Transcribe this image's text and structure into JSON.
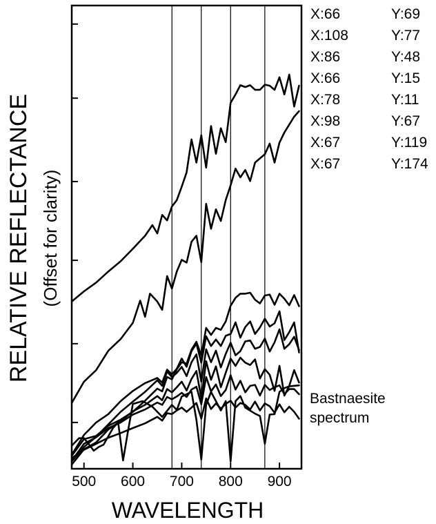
{
  "chart_data": {
    "type": "line",
    "title": "",
    "xlabel": "WAVELENGTH",
    "ylabel": "RELATIVE REFLECTANCE",
    "ylabel_sub": "(Offset for clarity)",
    "xlim": [
      475,
      945
    ],
    "xticks": [
      500,
      600,
      700,
      800,
      900
    ],
    "y_units": "relative (offset)",
    "ylim": [
      0,
      100
    ],
    "vertical_lines": [
      680,
      740,
      800,
      870
    ],
    "grid": false,
    "legend": "right",
    "series": [
      {
        "name": "X:66 Y:69",
        "x": [
          475,
          500,
          525,
          550,
          575,
          600,
          625,
          640,
          650,
          660,
          670,
          680,
          690,
          700,
          710,
          720,
          730,
          740,
          750,
          760,
          770,
          780,
          790,
          800,
          810,
          820,
          830,
          840,
          850,
          860,
          870,
          880,
          890,
          900,
          910,
          920,
          930,
          940
        ],
        "y": [
          36.1,
          38.3,
          40.2,
          42.6,
          44.8,
          47.5,
          50.3,
          52.6,
          50.8,
          54.8,
          53.6,
          56.6,
          58.0,
          60.9,
          64.0,
          71.1,
          66.1,
          72.0,
          65.0,
          74.0,
          68.0,
          73.5,
          70.5,
          79.0,
          80.8,
          82.8,
          82.4,
          82.8,
          81.8,
          81.8,
          82.9,
          82.7,
          81.8,
          84.5,
          80.8,
          85.1,
          78.2,
          82.7
        ]
      },
      {
        "name": "X:108 Y:77",
        "x": [
          475,
          500,
          525,
          550,
          575,
          600,
          615,
          625,
          635,
          650,
          660,
          670,
          680,
          690,
          700,
          710,
          720,
          730,
          740,
          750,
          760,
          770,
          780,
          790,
          800,
          810,
          820,
          830,
          840,
          850,
          860,
          870,
          880,
          890,
          900,
          910,
          920,
          930,
          940
        ],
        "y": [
          14.2,
          18.8,
          21.3,
          25.5,
          28.0,
          31.5,
          36.3,
          32.8,
          37.8,
          36.1,
          34.3,
          41.6,
          38.9,
          42.6,
          45.1,
          44.5,
          49.0,
          50.3,
          44.6,
          57.2,
          51.8,
          56.0,
          53.5,
          58.0,
          61.2,
          64.8,
          62.9,
          64.5,
          62.1,
          66.1,
          67.0,
          67.9,
          70.2,
          66.1,
          70.4,
          72.6,
          74.3,
          76.0,
          77.2
        ]
      },
      {
        "name": "X:86 Y:48",
        "x": [
          475,
          500,
          525,
          550,
          575,
          600,
          625,
          650,
          660,
          670,
          680,
          690,
          700,
          710,
          720,
          730,
          740,
          750,
          760,
          770,
          780,
          790,
          800,
          810,
          820,
          830,
          840,
          850,
          860,
          870,
          880,
          890,
          900,
          910,
          920,
          930,
          940
        ],
        "y": [
          2.8,
          6.4,
          7.1,
          9.3,
          10.6,
          12.3,
          14.7,
          17.3,
          16.7,
          19.8,
          19.3,
          21.5,
          23.0,
          22.7,
          25.7,
          27.4,
          24.5,
          30.4,
          28.9,
          30.4,
          30.0,
          31.8,
          35.2,
          36.9,
          37.8,
          37.8,
          38.0,
          36.5,
          35.7,
          37.4,
          37.6,
          35.4,
          37.8,
          36.7,
          35.3,
          37.5,
          35.1
        ]
      },
      {
        "name": "X:66 Y:15",
        "x": [
          475,
          500,
          525,
          550,
          575,
          600,
          625,
          650,
          660,
          670,
          680,
          690,
          700,
          710,
          720,
          730,
          740,
          750,
          760,
          770,
          780,
          790,
          800,
          810,
          820,
          830,
          840,
          850,
          860,
          870,
          880,
          890,
          900,
          910,
          920,
          930,
          940
        ],
        "y": [
          3.0,
          7.3,
          10.0,
          11.8,
          14.6,
          16.8,
          18.5,
          19.6,
          18.6,
          21.4,
          20.4,
          21.6,
          23.8,
          22.0,
          25.4,
          27.0,
          22.9,
          28.6,
          26.5,
          27.9,
          26.5,
          28.7,
          29.1,
          31.6,
          28.3,
          30.6,
          31.8,
          29.1,
          30.5,
          32.4,
          30.7,
          31.4,
          34.0,
          27.8,
          29.5,
          31.6,
          25.1
        ]
      },
      {
        "name": "X:78 Y:11",
        "x": [
          475,
          500,
          525,
          550,
          575,
          600,
          625,
          650,
          660,
          670,
          680,
          690,
          700,
          710,
          720,
          730,
          740,
          750,
          760,
          770,
          780,
          790,
          800,
          810,
          820,
          830,
          840,
          850,
          860,
          870,
          880,
          890,
          900,
          910,
          920,
          930,
          940
        ],
        "y": [
          1.6,
          4.7,
          6.9,
          9.6,
          12.3,
          14.5,
          16.6,
          19.1,
          17.9,
          21.0,
          19.8,
          20.7,
          22.0,
          20.0,
          23.0,
          24.7,
          18.8,
          25.8,
          23.0,
          25.5,
          21.9,
          24.8,
          27.2,
          24.5,
          25.4,
          27.5,
          27.7,
          25.9,
          26.3,
          28.1,
          25.3,
          27.3,
          30.1,
          25.9,
          26.9,
          28.5,
          25.6
        ]
      },
      {
        "name": "X:98 Y:67",
        "x": [
          475,
          500,
          525,
          550,
          575,
          600,
          625,
          650,
          660,
          670,
          680,
          690,
          700,
          710,
          720,
          730,
          740,
          750,
          760,
          770,
          780,
          790,
          800,
          810,
          820,
          830,
          840,
          850,
          860,
          870,
          880,
          890,
          900,
          910,
          920,
          930,
          940
        ],
        "y": [
          0.9,
          4.2,
          5.7,
          8.5,
          10.3,
          12.4,
          13.8,
          15.7,
          14.8,
          17.2,
          16.5,
          17.6,
          18.8,
          16.9,
          19.4,
          21.1,
          15.2,
          23.2,
          19.2,
          22.1,
          17.6,
          20.7,
          23.8,
          22.2,
          24.0,
          22.9,
          22.4,
          23.6,
          19.5,
          21.5,
          20.3,
          16.8,
          22.2,
          15.8,
          17.9,
          21.3,
          18.6
        ]
      },
      {
        "name": "X:67 Y:119",
        "x": [
          475,
          500,
          525,
          550,
          575,
          600,
          625,
          650,
          660,
          670,
          680,
          690,
          700,
          710,
          720,
          730,
          740,
          750,
          760,
          770,
          780,
          790,
          800,
          810,
          820,
          830,
          840,
          850,
          860,
          870,
          880,
          890,
          900,
          910,
          920,
          930,
          940
        ],
        "y": [
          1.7,
          5.4,
          6.8,
          8.8,
          10.0,
          11.7,
          12.8,
          14.3,
          13.8,
          15.5,
          15.0,
          15.6,
          16.4,
          15.5,
          17.1,
          17.7,
          13.9,
          19.8,
          16.7,
          18.2,
          15.7,
          17.0,
          20.2,
          17.1,
          19.0,
          16.5,
          17.9,
          18.1,
          15.8,
          18.1,
          17.0,
          17.6,
          18.0,
          16.1,
          17.2,
          17.2,
          16.1
        ]
      },
      {
        "name": "X:67 Y:174",
        "x": [
          475,
          500,
          525,
          550,
          575,
          600,
          625,
          650,
          660,
          670,
          680,
          690,
          700,
          710,
          720,
          730,
          740,
          750,
          760,
          770,
          780,
          790,
          800,
          810,
          820,
          830,
          840,
          850,
          860,
          870,
          880,
          890,
          900,
          910,
          920,
          930,
          940
        ],
        "y": [
          2.3,
          4.1,
          5.4,
          6.7,
          7.7,
          8.8,
          9.8,
          11.2,
          10.4,
          12.0,
          11.8,
          12.6,
          13.2,
          12.3,
          13.2,
          14.2,
          10.8,
          15.2,
          12.9,
          14.1,
          13.0,
          14.0,
          14.7,
          13.2,
          14.2,
          13.8,
          12.8,
          14.5,
          12.6,
          14.1,
          13.5,
          12.1,
          13.9,
          12.2,
          13.4,
          12.3,
          10.8
        ]
      },
      {
        "name": "Bastnaesite spectrum",
        "x": [
          475,
          490,
          500,
          510,
          520,
          530,
          540,
          560,
          570,
          580,
          590,
          600,
          620,
          640,
          660,
          680,
          690,
          700,
          720,
          730,
          740,
          750,
          760,
          780,
          790,
          800,
          810,
          820,
          830,
          850,
          860,
          870,
          880,
          890,
          900,
          910,
          920,
          940
        ],
        "y": [
          5.0,
          6.6,
          6.6,
          5.3,
          3.9,
          4.7,
          5.2,
          8.9,
          10.0,
          1.8,
          8.1,
          14.0,
          14.6,
          13.4,
          11.2,
          13.8,
          12.7,
          15.6,
          16.6,
          10.6,
          2.0,
          13.8,
          16.6,
          12.6,
          14.6,
          1.6,
          14.6,
          15.7,
          13.2,
          11.9,
          11.4,
          5.4,
          11.7,
          11.8,
          16.6,
          17.4,
          17.8,
          18.0
        ]
      }
    ],
    "legend_entries": [
      {
        "x": "X:66",
        "y": "Y:69"
      },
      {
        "x": "X:108",
        "y": "Y:77"
      },
      {
        "x": "X:86",
        "y": "Y:48"
      },
      {
        "x": "X:66",
        "y": "Y:15"
      },
      {
        "x": "X:78",
        "y": "Y:11"
      },
      {
        "x": "X:98",
        "y": "Y:67"
      },
      {
        "x": "X:67",
        "y": "Y:119"
      },
      {
        "x": "X:67",
        "y": "Y:174"
      }
    ],
    "annotation": [
      "Bastnaesite",
      "spectrum"
    ]
  }
}
